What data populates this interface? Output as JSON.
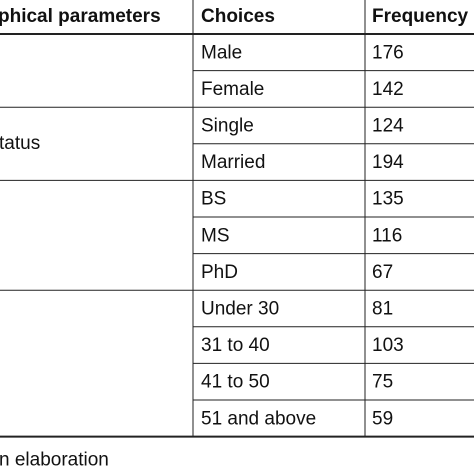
{
  "table": {
    "header": [
      "phical parameters",
      "Choices",
      "Frequency"
    ],
    "groups": [
      {
        "label": null,
        "rows": [
          {
            "choice": "Male",
            "frequency": 176
          },
          {
            "choice": "Female",
            "frequency": 142
          }
        ]
      },
      {
        "label": "tatus",
        "rows": [
          {
            "choice": "Single",
            "frequency": 124
          },
          {
            "choice": "Married",
            "frequency": 194
          }
        ]
      },
      {
        "label": null,
        "rows": [
          {
            "choice": "BS",
            "frequency": 135
          },
          {
            "choice": "MS",
            "frequency": 116
          },
          {
            "choice": "PhD",
            "frequency": 67
          }
        ]
      },
      {
        "label": null,
        "rows": [
          {
            "choice": "Under 30",
            "frequency": 81
          },
          {
            "choice": "31 to 40",
            "frequency": 103
          },
          {
            "choice": "41 to 50",
            "frequency": 75
          },
          {
            "choice": "51 and above",
            "frequency": 59
          }
        ]
      }
    ],
    "footer": "n elaboration"
  }
}
